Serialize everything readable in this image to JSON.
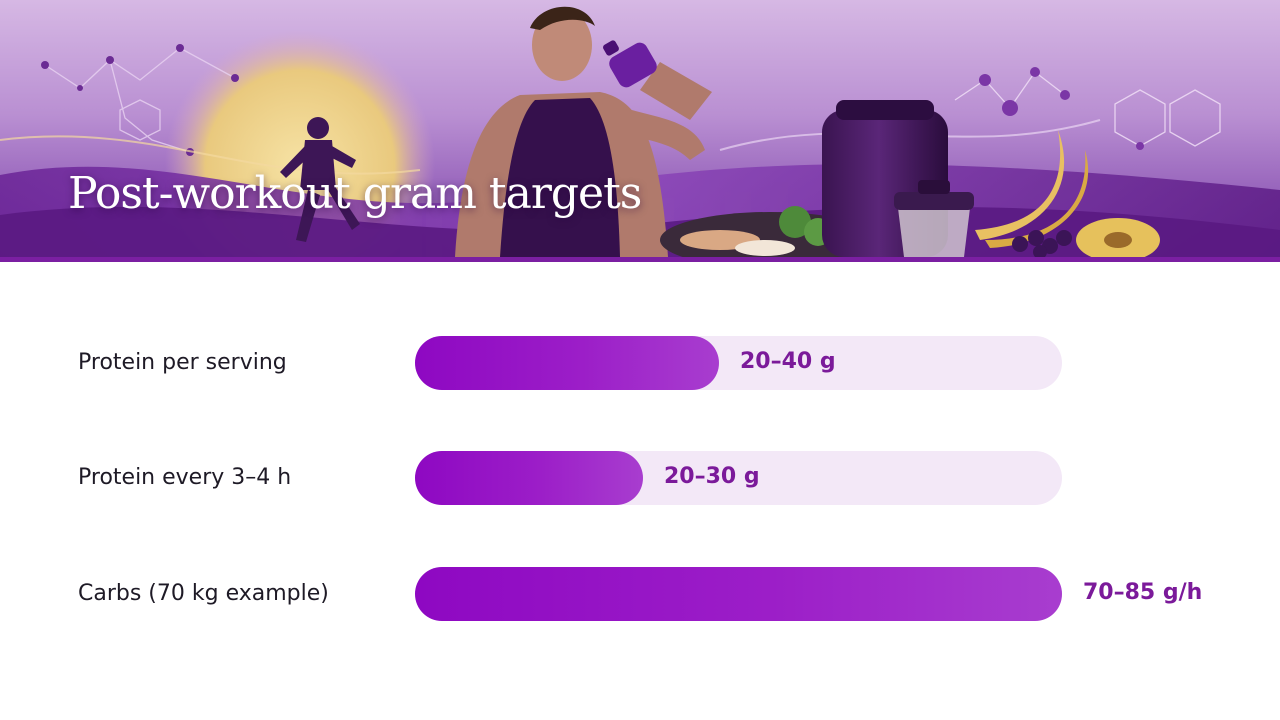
{
  "slide": {
    "title": "Post-workout gram targets"
  },
  "colors": {
    "accent": "#7b1fa2",
    "bar_fill": "#9412c5",
    "bar_track": "#f3e8f7",
    "value_text": "#7b1a9a",
    "label_text": "#1e1a26"
  },
  "chart_data": {
    "type": "bar",
    "orientation": "horizontal",
    "categories": [
      "Protein per serving",
      "Protein every 3–4 h",
      "Carbs (70 kg example)"
    ],
    "series": [
      {
        "values": [
          40,
          30,
          85
        ],
        "ranges": [
          [
            20,
            40
          ],
          [
            20,
            30
          ],
          [
            70,
            85
          ]
        ],
        "units": [
          "g",
          "g",
          "g/h"
        ],
        "value_labels": [
          "20–40 g",
          "20–30 g",
          "70–85 g/h"
        ]
      }
    ],
    "xlim": [
      0,
      85
    ],
    "grid": false,
    "legend": "none",
    "title": "Post-workout gram targets"
  }
}
